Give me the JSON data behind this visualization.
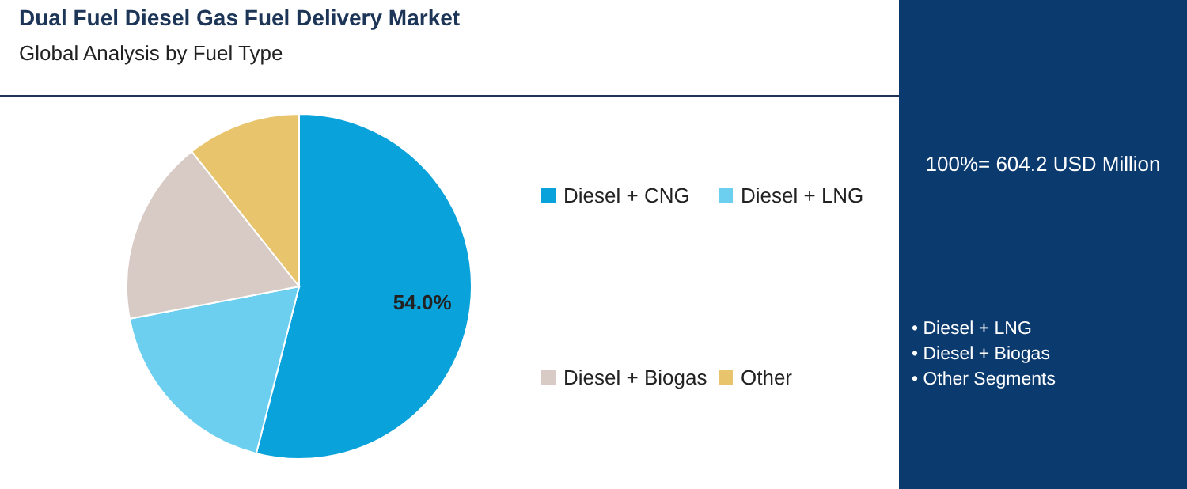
{
  "chart_data": {
    "type": "pie",
    "title": "Dual Fuel Diesel Gas Fuel Delivery Market",
    "subtitle": "Global Analysis by Fuel Type",
    "categories": [
      "Diesel + CNG",
      "Diesel + LNG",
      "Diesel + Biogas",
      "Other"
    ],
    "values": [
      54.0,
      18.0,
      17.3,
      10.7
    ],
    "colors": [
      "#0aa2db",
      "#6ccff0",
      "#d8cbc6",
      "#e8c46c"
    ],
    "value_labels": [
      "54.0%",
      null,
      null,
      null
    ],
    "legend": "right",
    "annotations": [
      "100%= 604.2 USD Million",
      "• Diesel + LNG",
      "• Diesel + Biogas",
      "• Other Segments"
    ]
  }
}
